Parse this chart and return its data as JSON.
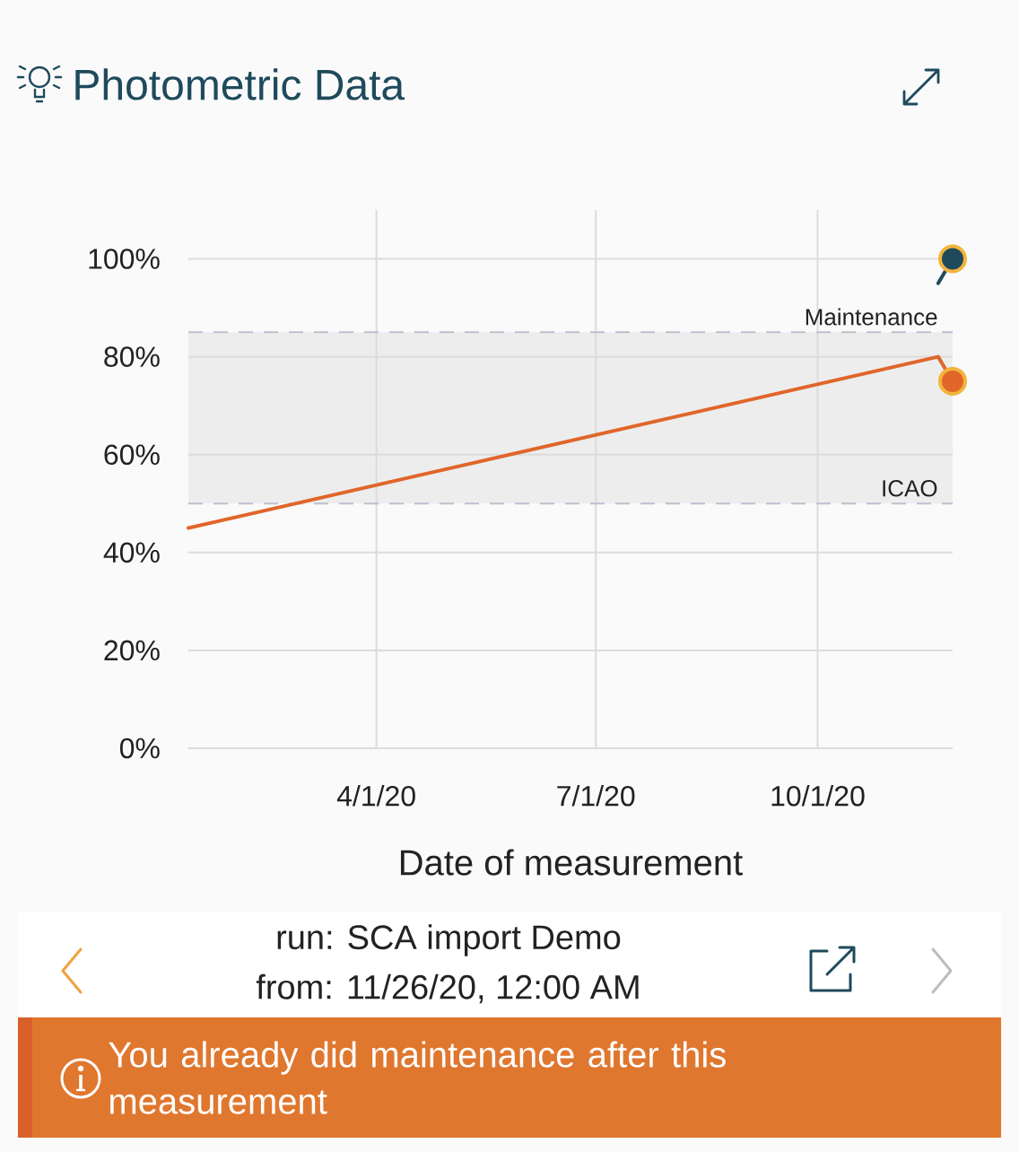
{
  "chart_data": {
    "type": "line",
    "title": "Photometric Data",
    "xlabel": "Date of measurement",
    "xlim": [
      "2020-01-14",
      "2020-11-26"
    ],
    "xticks": [
      {
        "value": "2020-04-01",
        "label": "4/1/20"
      },
      {
        "value": "2020-07-01",
        "label": "7/1/20"
      },
      {
        "value": "2020-10-01",
        "label": "10/1/20"
      }
    ],
    "ylim": [
      0,
      110
    ],
    "yticks": [
      {
        "value": 0,
        "label": "0%"
      },
      {
        "value": 20,
        "label": "20%"
      },
      {
        "value": 40,
        "label": "40%"
      },
      {
        "value": 60,
        "label": "60%"
      },
      {
        "value": 80,
        "label": "80%"
      },
      {
        "value": 100,
        "label": "100%"
      }
    ],
    "grid": true,
    "series": [
      {
        "color": "#e0662a",
        "x": [
          "2020-01-14",
          "2020-11-20",
          "2020-11-26"
        ],
        "values": [
          45,
          80,
          75
        ]
      },
      {
        "color": "#1e4a5c",
        "x": [
          "2020-11-20",
          "2020-11-26"
        ],
        "values": [
          95,
          100
        ]
      },
      {
        "type": "scatter",
        "marker": "circle",
        "x": [
          "2020-11-26",
          "2020-11-26"
        ],
        "values": [
          75,
          100
        ],
        "colors": [
          "#e0662a",
          "#1e4a5c"
        ]
      }
    ],
    "bands": [
      {
        "axis": "y",
        "from": 50,
        "to": 85,
        "color": "#ededed"
      }
    ],
    "ref_lines": [
      {
        "axis": "y",
        "value": 85,
        "label": "Maintenance",
        "color": "#bcc0cf",
        "line_style": "dashed"
      },
      {
        "axis": "y",
        "value": 50,
        "label": "ICAO",
        "color": "#bcc0cf",
        "line_style": "dashed"
      }
    ],
    "annotations": [
      "run: SCA import Demo",
      "from: 11/26/20, 12:00 AM",
      "You already did maintenance after this measurement"
    ]
  }
}
